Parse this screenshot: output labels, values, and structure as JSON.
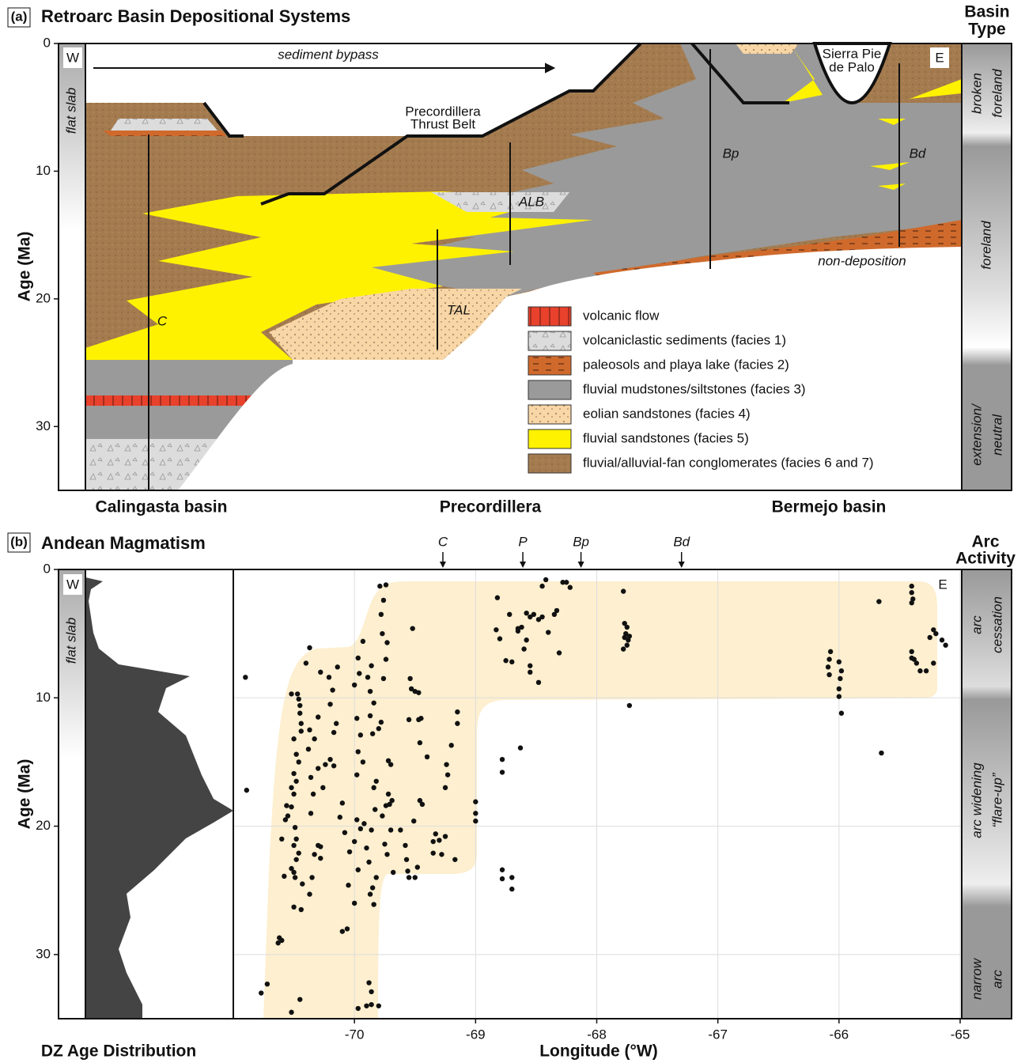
{
  "panel_a": {
    "label": "(a)",
    "title": "Retroarc Basin Depositional Systems",
    "side_title": [
      "Basin",
      "Type"
    ],
    "y_label": "Age (Ma)",
    "ylim": [
      0,
      35
    ],
    "yticks": [
      0,
      10,
      20,
      30
    ],
    "west": "W",
    "east": "E",
    "slab": "flat slab",
    "annotations": {
      "bypass": "sediment bypass",
      "thrust_belt": [
        "Precordillera",
        "Thrust Belt"
      ],
      "sierra": [
        "Sierra Pie",
        "de Palo"
      ],
      "nondeposition": "non-deposition"
    },
    "sections": [
      "C",
      "TAL",
      "ALB",
      "Bp",
      "Bd"
    ],
    "legend": [
      "volcanic flow",
      "volcaniclastic sediments (facies 1)",
      "paleosols and playa lake (facies 2)",
      "fluvial mudstones/siltstones (facies 3)",
      "eolian sandstones (facies 4)",
      "fluvial sandstones (facies 5)",
      "fluvial/alluvial-fan conglomerates (facies 6 and 7)"
    ],
    "basin_types": [
      [
        "broken",
        "foreland"
      ],
      [
        "foreland"
      ],
      [
        "extension/",
        "neutral"
      ]
    ],
    "regions": [
      "Calingasta basin",
      "Precordillera",
      "Bermejo basin"
    ]
  },
  "chart_data": {
    "type": "scatter",
    "label": "(b)",
    "title": "Andean Magmatism",
    "side_title": [
      "Arc",
      "Activity"
    ],
    "y_label": "Age (Ma)",
    "x_label": "Longitude (°W)",
    "dz_label": "DZ Age Distribution",
    "west": "W",
    "east": "E",
    "slab": "flat slab",
    "arc_phases": [
      [
        "arc",
        "cessation"
      ],
      [
        "arc widening",
        "“flare-up”"
      ],
      [
        "narrow",
        "arc"
      ]
    ],
    "markers": [
      {
        "label": "C",
        "x": -69.27
      },
      {
        "label": "P",
        "x": -68.61
      },
      {
        "label": "Bp",
        "x": -68.13
      },
      {
        "label": "Bd",
        "x": -67.3
      }
    ],
    "xlim": [
      -71,
      -65
    ],
    "xticks": [
      -70,
      -69,
      -68,
      -67,
      -66,
      -65
    ],
    "ylim": [
      0,
      35
    ],
    "yticks": [
      0,
      10,
      20,
      30
    ],
    "grid": true,
    "y_reversed": true,
    "envelope_color": "#fdefcf",
    "series": [
      {
        "color": "#111111",
        "x": [
          -70.9,
          -70.89,
          -70.52,
          -70.47,
          -70.46,
          -70.45,
          -70.45,
          -70.44,
          -70.44,
          -70.5,
          -70.48,
          -70.46,
          -70.5,
          -70.48,
          -70.52,
          -70.5,
          -70.52,
          -70.56,
          -70.55,
          -70.49,
          -70.48,
          -70.5,
          -70.46,
          -70.48,
          -70.52,
          -70.5,
          -70.49,
          -70.58,
          -70.6,
          -70.57,
          -70.62,
          -70.6,
          -70.63,
          -70.72,
          -70.77,
          -70.45,
          -70.52,
          -70.44,
          -70.5,
          -70.43,
          -70.37,
          -70.35,
          -70.33,
          -70.3,
          -70.28,
          -70.28,
          -70.36,
          -70.34,
          -70.36,
          -70.3,
          -70.26,
          -70.24,
          -70.38,
          -70.33,
          -70.37,
          -70.3,
          -70.28,
          -70.4,
          -70.37,
          -70.14,
          -70.21,
          -70.18,
          -70.2,
          -70.15,
          -70.17,
          -70.2,
          -70.17,
          -70.1,
          -70.12,
          -70.08,
          -70.0,
          -70.04,
          -69.97,
          -70.05,
          -70.06,
          -70.1,
          -70.0,
          -69.98,
          -69.95,
          -69.92,
          -69.9,
          -69.93,
          -69.98,
          -69.97,
          -69.95,
          -69.98,
          -70.0,
          -69.96,
          -69.97,
          -69.93,
          -69.89,
          -69.86,
          -69.87,
          -69.84,
          -69.87,
          -69.85,
          -69.82,
          -69.84,
          -69.83,
          -69.86,
          -69.88,
          -69.85,
          -69.87,
          -69.84,
          -69.82,
          -69.88,
          -69.86,
          -69.86,
          -69.9,
          -69.8,
          -69.97,
          -69.79,
          -69.74,
          -69.76,
          -69.78,
          -69.77,
          -69.73,
          -69.74,
          -69.76,
          -69.78,
          -69.8,
          -69.72,
          -69.7,
          -69.72,
          -69.71,
          -69.74,
          -69.77,
          -69.7,
          -69.75,
          -69.73,
          -69.69,
          -69.68,
          -69.62,
          -69.58,
          -69.57,
          -69.56,
          -69.55,
          -69.5,
          -69.48,
          -69.44,
          -69.46,
          -69.51,
          -69.54,
          -69.53,
          -69.5,
          -69.47,
          -69.47,
          -69.45,
          -69.55,
          -69.52,
          -69.46,
          -69.4,
          -69.35,
          -69.33,
          -69.35,
          -69.3,
          -69.28,
          -69.25,
          -69.25,
          -69.23,
          -69.24,
          -69.2,
          -69.15,
          -69.15,
          -69.17,
          -69.0,
          -69.0,
          -69.0,
          -68.78,
          -68.78,
          -68.7,
          -68.7,
          -68.78,
          -68.78,
          -68.63,
          -68.83,
          -68.8,
          -68.82,
          -68.75,
          -68.72,
          -68.65,
          -68.62,
          -68.58,
          -68.55,
          -68.52,
          -68.58,
          -68.6,
          -68.55,
          -68.55,
          -68.48,
          -68.48,
          -68.45,
          -68.4,
          -68.45,
          -68.42,
          -68.35,
          -68.33,
          -68.31,
          -68.28,
          -68.25,
          -68.22,
          -68.65,
          -68.7,
          -67.78,
          -67.77,
          -67.75,
          -67.76,
          -67.77,
          -67.74,
          -67.73,
          -67.75,
          -67.78,
          -67.73,
          -66.07,
          -66.08,
          -66.09,
          -66.08,
          -66.0,
          -65.98,
          -65.99,
          -66.0,
          -66.0,
          -65.98,
          -65.67,
          -65.65,
          -65.4,
          -65.4,
          -65.39,
          -65.4,
          -65.22,
          -65.2,
          -65.25,
          -65.15,
          -65.12,
          -65.4,
          -65.38,
          -65.36,
          -65.33,
          -65.22,
          -65.28,
          -65.4
        ],
        "values": [
          8.4,
          17.2,
          9.7,
          9.7,
          10.1,
          10.6,
          11.2,
          12.0,
          12.6,
          13.2,
          14.4,
          15.0,
          15.9,
          16.5,
          17.0,
          17.5,
          18.5,
          18.4,
          19.2,
          20.1,
          21.0,
          21.5,
          22.1,
          22.6,
          23.3,
          23.6,
          24.0,
          23.9,
          21.0,
          19.5,
          28.7,
          28.9,
          29.1,
          32.3,
          33.0,
          33.5,
          34.5,
          26.5,
          26.3,
          24.5,
          25.3,
          24.0,
          22.2,
          21.5,
          21.6,
          22.5,
          19.0,
          17.5,
          16.2,
          15.5,
          17.0,
          15.2,
          14.0,
          13.2,
          12.5,
          11.5,
          8.0,
          7.3,
          6.1,
          7.6,
          8.4,
          9.4,
          10.5,
          12.0,
          12.7,
          14.8,
          15.3,
          18.2,
          19.3,
          20.5,
          21.2,
          22.0,
          23.4,
          24.6,
          28.0,
          28.2,
          26.0,
          19.5,
          20.2,
          19.8,
          21.7,
          15.0,
          16.0,
          14.2,
          12.9,
          11.6,
          9.0,
          8.1,
          6.9,
          5.6,
          8.4,
          7.5,
          9.5,
          10.4,
          11.4,
          12.8,
          16.5,
          17.0,
          18.7,
          20.3,
          22.8,
          24.8,
          25.3,
          26.1,
          24.0,
          32.2,
          32.9,
          33.9,
          34.0,
          34.0,
          34.2,
          1.3,
          1.2,
          2.4,
          3.5,
          5.0,
          5.7,
          7.0,
          8.5,
          11.9,
          12.4,
          14.9,
          15.2,
          17.5,
          18.3,
          18.4,
          19.2,
          20.3,
          21.4,
          22.2,
          18.0,
          23.6,
          20.3,
          21.5,
          22.6,
          23.5,
          24.0,
          24.0,
          23.2,
          18.3,
          18.0,
          19.6,
          8.5,
          9.3,
          9.5,
          9.6,
          11.7,
          11.6,
          11.7,
          4.6,
          13.5,
          14.6,
          22.1,
          20.6,
          21.2,
          21.1,
          22.2,
          20.8,
          17.0,
          16.0,
          15.2,
          13.7,
          11.1,
          12.0,
          22.6,
          18.1,
          19.0,
          19.6,
          23.4,
          24.1,
          24.0,
          24.9,
          14.8,
          15.8,
          13.9,
          4.7,
          5.4,
          2.2,
          7.1,
          3.5,
          4.8,
          4.5,
          3.4,
          3.7,
          3.5,
          5.5,
          6.2,
          7.5,
          8.0,
          8.8,
          3.9,
          3.7,
          4.9,
          1.3,
          0.8,
          3.5,
          3.2,
          6.5,
          1.0,
          1.0,
          1.4,
          4.6,
          7.2,
          1.7,
          4.2,
          4.5,
          5.0,
          5.3,
          5.5,
          5.2,
          5.9,
          6.2,
          10.6,
          6.4,
          7.0,
          7.6,
          8.2,
          7.2,
          7.9,
          8.5,
          9.3,
          9.9,
          11.2,
          2.5,
          14.3,
          1.3,
          1.8,
          2.3,
          2.6,
          4.7,
          5.0,
          5.3,
          5.5,
          5.9,
          6.4,
          7.0,
          7.3,
          7.9,
          7.3,
          7.9,
          6.9
        ]
      }
    ]
  }
}
